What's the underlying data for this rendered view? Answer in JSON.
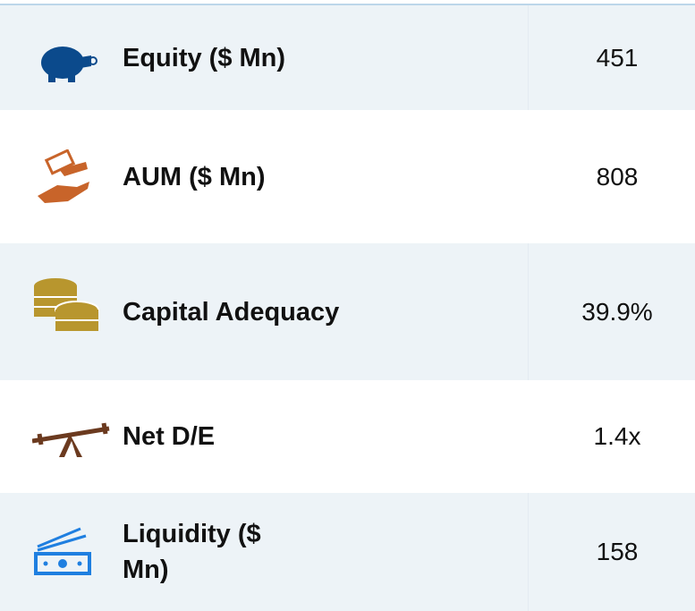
{
  "table": {
    "rows": [
      {
        "label": "Equity ($ Mn)",
        "value": "451"
      },
      {
        "label": "AUM ($ Mn)",
        "value": "808"
      },
      {
        "label": "Capital Adequacy",
        "value": "39.9%"
      },
      {
        "label": "Net D/E",
        "value": "1.4x"
      },
      {
        "label": "Liquidity ($ Mn)",
        "value": "158"
      }
    ]
  }
}
